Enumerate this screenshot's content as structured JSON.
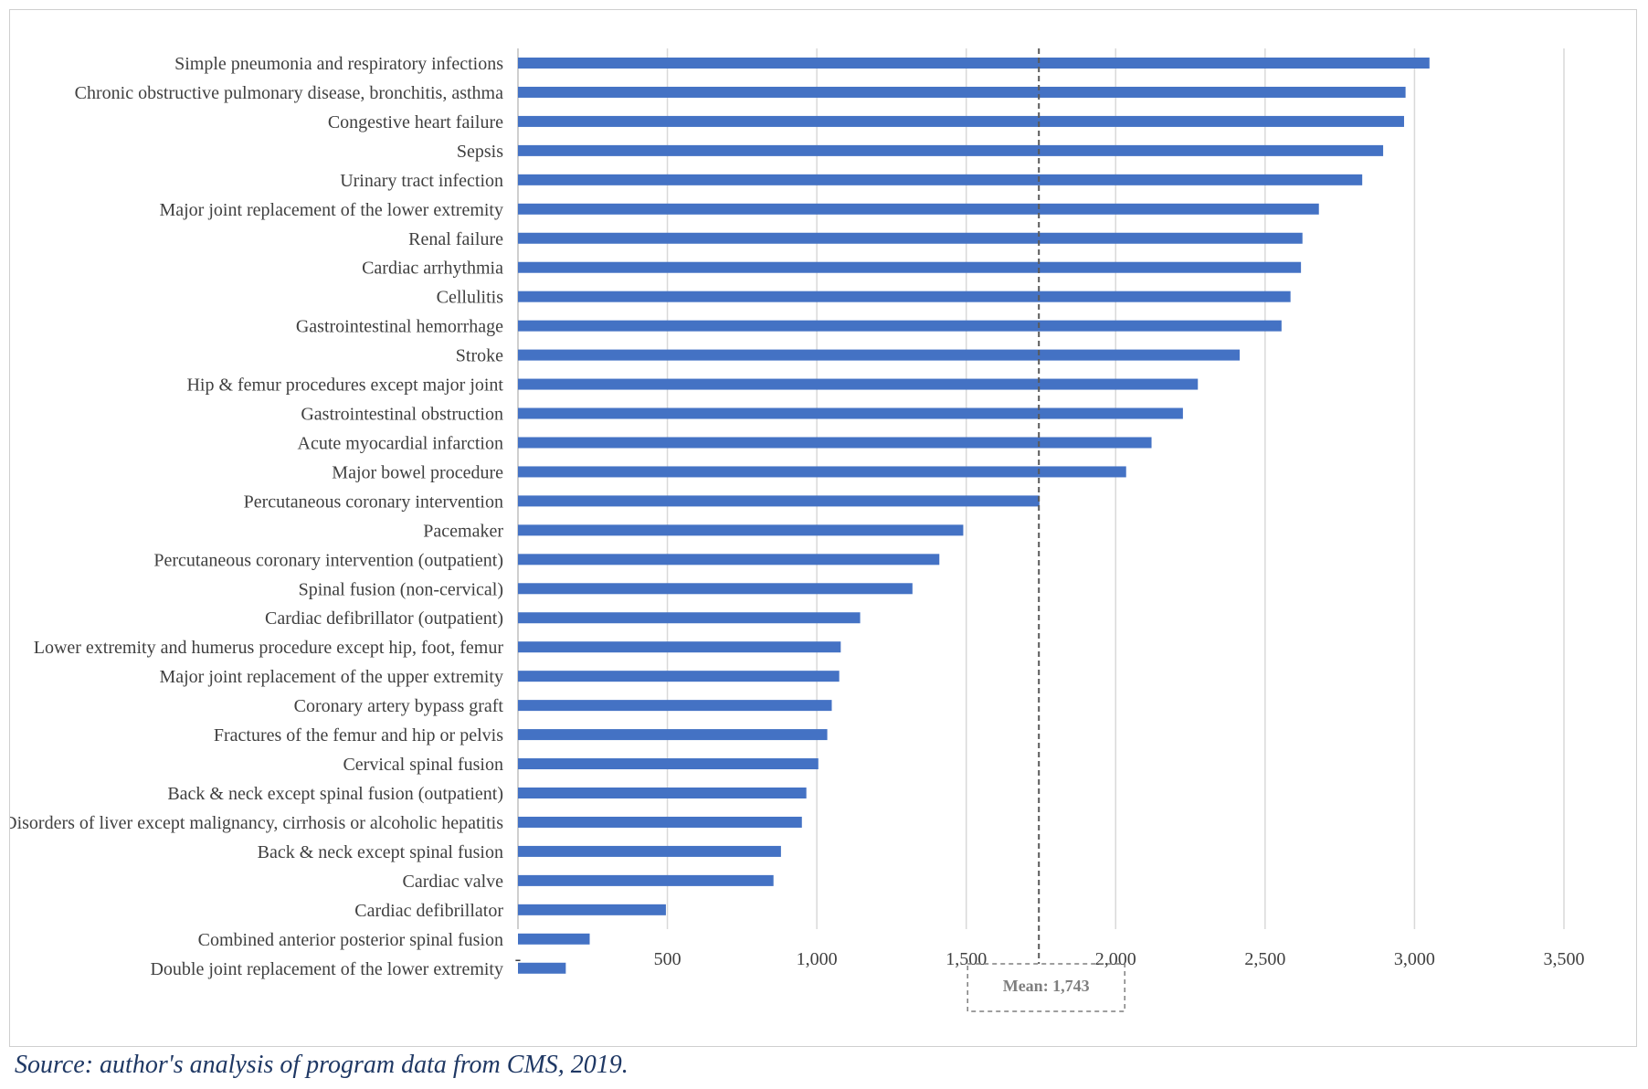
{
  "chart_data": {
    "type": "bar",
    "orientation": "horizontal",
    "title": "",
    "xlabel": "",
    "ylabel": "",
    "xlim": [
      0,
      3500
    ],
    "x_ticks": [
      0,
      500,
      1000,
      1500,
      2000,
      2500,
      3000,
      3500
    ],
    "x_tick_labels": [
      "-",
      "500",
      "1,000",
      "1,500",
      "2,000",
      "2,500",
      "3,000",
      "3,500"
    ],
    "grid": "vertical",
    "bar_color": "#4472c4",
    "categories": [
      "Simple pneumonia and respiratory infections",
      "Chronic obstructive pulmonary disease, bronchitis, asthma",
      "Congestive heart failure",
      "Sepsis",
      "Urinary tract infection",
      "Major joint replacement of the lower extremity",
      "Renal failure",
      "Cardiac arrhythmia",
      "Cellulitis",
      "Gastrointestinal hemorrhage",
      "Stroke",
      "Hip & femur procedures except major joint",
      "Gastrointestinal obstruction",
      "Acute myocardial infarction",
      "Major bowel procedure",
      "Percutaneous coronary intervention",
      "Pacemaker",
      "Percutaneous coronary intervention (outpatient)",
      "Spinal fusion (non-cervical)",
      "Cardiac defibrillator (outpatient)",
      "Lower extremity and humerus procedure except hip, foot, femur",
      "Major joint replacement of the upper extremity",
      "Coronary artery bypass graft",
      "Fractures of the femur and hip or pelvis",
      "Cervical spinal fusion",
      "Back & neck except spinal fusion (outpatient)",
      "Disorders of liver except malignancy, cirrhosis or alcoholic hepatitis",
      "Back & neck except spinal fusion",
      "Cardiac valve",
      "Cardiac defibrillator",
      "Combined anterior posterior spinal fusion",
      "Double joint replacement of the lower extremity"
    ],
    "values": [
      3050,
      2970,
      2965,
      2895,
      2825,
      2680,
      2625,
      2620,
      2585,
      2555,
      2415,
      2275,
      2225,
      2120,
      2035,
      1745,
      1490,
      1410,
      1320,
      1145,
      1080,
      1075,
      1050,
      1035,
      1005,
      965,
      950,
      880,
      855,
      495,
      240,
      160
    ],
    "mean": {
      "value": 1743,
      "label": "Mean: 1,743",
      "line_color": "#595959",
      "box_color": "#7f7f7f"
    }
  },
  "source_note": "Source: author's analysis of program data from CMS, 2019."
}
